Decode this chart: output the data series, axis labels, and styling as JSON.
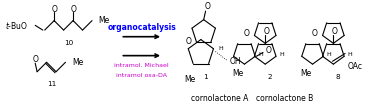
{
  "fig_width": 3.78,
  "fig_height": 1.05,
  "dpi": 100,
  "background_color": "#FFFFFF",
  "structure_color": "#000000",
  "organocatalysis_color": "#0000FF",
  "intramol_color": "#CC00CC",
  "arrow_color": "#000000",
  "text_organocatalysis": "organocatalysis",
  "text_intramol_michael": "intramol. Michael",
  "text_intramol_oxa_da": "intramol oxa-DA",
  "text_cornolactone_a": "cornolactone A",
  "text_cornolactone_b": "cornolactone B",
  "label_10": "10",
  "label_11": "11",
  "label_1": "1",
  "label_2": "2",
  "label_8": "8"
}
